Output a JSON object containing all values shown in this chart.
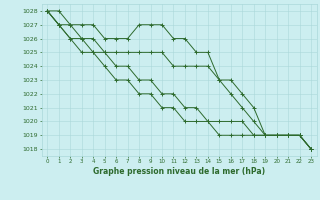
{
  "title": "Graphe pression niveau de la mer (hPa)",
  "background_color": "#cceef0",
  "grid_color": "#aad8da",
  "line_color": "#2d6a2d",
  "xlim": [
    -0.5,
    23.5
  ],
  "ylim": [
    1017.5,
    1028.5
  ],
  "yticks": [
    1018,
    1019,
    1020,
    1021,
    1022,
    1023,
    1024,
    1025,
    1026,
    1027,
    1028
  ],
  "xticks": [
    0,
    1,
    2,
    3,
    4,
    5,
    6,
    7,
    8,
    9,
    10,
    11,
    12,
    13,
    14,
    15,
    16,
    17,
    18,
    19,
    20,
    21,
    22,
    23
  ],
  "series": [
    [
      1028,
      1028,
      1027,
      1027,
      1027,
      1026,
      1026,
      1026,
      1027,
      1027,
      1027,
      1026,
      1026,
      1025,
      1025,
      1023,
      1023,
      1022,
      1021,
      1019,
      1019,
      1019,
      1019,
      1018
    ],
    [
      1028,
      1027,
      1027,
      1026,
      1026,
      1025,
      1025,
      1025,
      1025,
      1025,
      1025,
      1024,
      1024,
      1024,
      1024,
      1023,
      1022,
      1021,
      1020,
      1019,
      1019,
      1019,
      1019,
      1018
    ],
    [
      1028,
      1027,
      1026,
      1026,
      1025,
      1025,
      1024,
      1024,
      1023,
      1023,
      1022,
      1022,
      1021,
      1021,
      1020,
      1020,
      1020,
      1020,
      1019,
      1019,
      1019,
      1019,
      1019,
      1018
    ],
    [
      1028,
      1027,
      1026,
      1025,
      1025,
      1024,
      1023,
      1023,
      1022,
      1022,
      1021,
      1021,
      1020,
      1020,
      1020,
      1019,
      1019,
      1019,
      1019,
      1019,
      1019,
      1019,
      1019,
      1018
    ]
  ]
}
